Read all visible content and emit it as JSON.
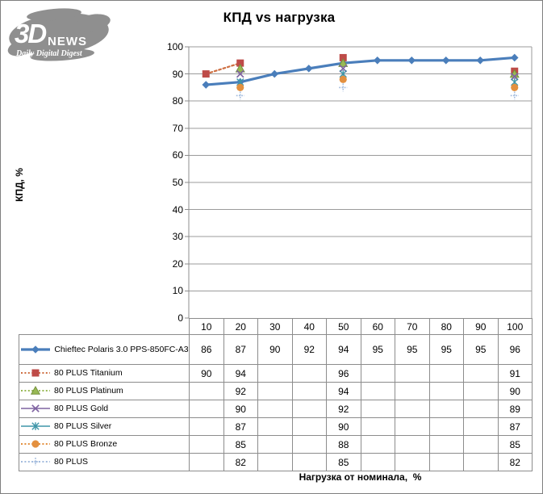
{
  "logo": {
    "brand": "3D",
    "brand_suffix": "NEWS",
    "tagline": "Daily Digital Digest"
  },
  "title": "КПД vs нагрузка",
  "chart_data": {
    "type": "line",
    "title": "КПД vs нагрузка",
    "xlabel": "Нагрузка от номинала,  %",
    "ylabel": "КПД, %",
    "x": [
      10,
      20,
      30,
      40,
      50,
      60,
      70,
      80,
      90,
      100
    ],
    "ylim": [
      0,
      100
    ],
    "ytick_step": 10,
    "grid": true,
    "legend_position": "table-left",
    "data_table_shown": true,
    "series": [
      {
        "name": "Chieftec Polaris 3.0 PPS-850FC-A3",
        "values": [
          86,
          87,
          90,
          92,
          94,
          95,
          95,
          95,
          95,
          96
        ],
        "color": "#4a7ebb",
        "marker": "diamond",
        "line": "solid"
      },
      {
        "name": "80 PLUS Titanium",
        "values": [
          90,
          94,
          null,
          null,
          96,
          null,
          null,
          null,
          null,
          91
        ],
        "color": "#be4b48",
        "line_color": "#ce6f42",
        "marker": "square",
        "line": "dotted"
      },
      {
        "name": "80 PLUS Platinum",
        "values": [
          null,
          92,
          null,
          null,
          94,
          null,
          null,
          null,
          null,
          90
        ],
        "color": "#98b954",
        "edge": "#75913e",
        "marker": "triangle",
        "line": "dotted"
      },
      {
        "name": "80 PLUS Gold",
        "values": [
          null,
          90,
          null,
          null,
          92,
          null,
          null,
          null,
          null,
          89
        ],
        "color": "#7f63a1",
        "marker": "x",
        "line": "solid"
      },
      {
        "name": "80 PLUS Silver",
        "values": [
          null,
          87,
          null,
          null,
          90,
          null,
          null,
          null,
          null,
          87
        ],
        "color": "#3e95a8",
        "marker": "asterisk",
        "line": "solid"
      },
      {
        "name": "80 PLUS Bronze",
        "values": [
          null,
          85,
          null,
          null,
          88,
          null,
          null,
          null,
          null,
          85
        ],
        "color": "#e3903f",
        "marker": "circle",
        "line": "dotted"
      },
      {
        "name": "80 PLUS",
        "values": [
          null,
          82,
          null,
          null,
          85,
          null,
          null,
          null,
          null,
          82
        ],
        "color": "#a3bcde",
        "marker": "plus",
        "line": "dotted"
      }
    ],
    "colors": {
      "gridline": "#9b9b9b",
      "axis": "#8c8c8c",
      "table_border": "#8c8c8c",
      "logo_gray": "#8f8f8f"
    }
  }
}
